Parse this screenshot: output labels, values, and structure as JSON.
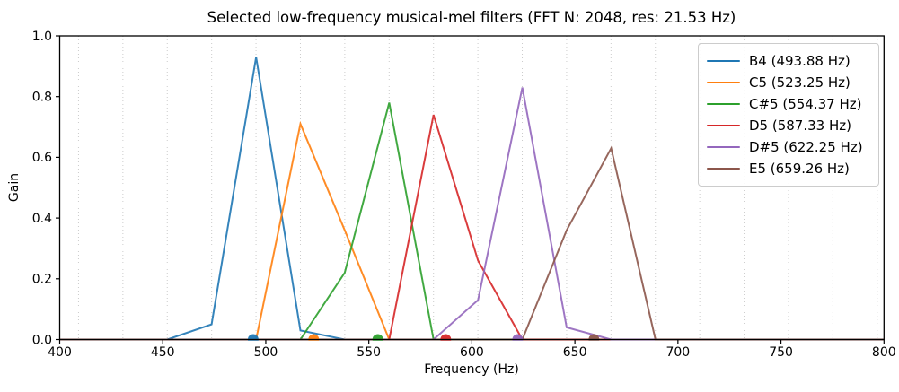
{
  "chart_data": {
    "type": "line",
    "title": "Selected low-frequency musical-mel filters (FFT N: 2048, res: 21.53 Hz)",
    "xlabel": "Frequency (Hz)",
    "ylabel": "Gain",
    "xlim": [
      400,
      800
    ],
    "ylim": [
      0.0,
      1.0
    ],
    "x_ticks": [
      400,
      450,
      500,
      550,
      600,
      650,
      700,
      750,
      800
    ],
    "y_ticks": [
      0.0,
      0.2,
      0.4,
      0.6,
      0.8,
      1.0
    ],
    "grid": {
      "axis": "x",
      "style": "dotted",
      "color": "#cccccc",
      "bin_hz": 21.533,
      "first_bin_index": 19,
      "last_bin_index": 37,
      "note": "vertical dotted gridlines at FFT bin frequencies (multiples of 21.53 Hz)"
    },
    "fft": {
      "n": 2048,
      "resolution_hz": 21.53
    },
    "legend_position": "upper-right",
    "series": [
      {
        "name": "B4",
        "label": "B4 (493.88 Hz)",
        "note_freq_hz": 493.88,
        "color": "#1f77b4",
        "points": [
          [
            400,
            0
          ],
          [
            452.2,
            0
          ],
          [
            473.7,
            0.05
          ],
          [
            495.3,
            0.93
          ],
          [
            516.8,
            0.03
          ],
          [
            538.3,
            0
          ],
          [
            800,
            0
          ]
        ]
      },
      {
        "name": "C5",
        "label": "C5 (523.25 Hz)",
        "note_freq_hz": 523.25,
        "color": "#ff7f0e",
        "points": [
          [
            400,
            0
          ],
          [
            495.3,
            0
          ],
          [
            516.8,
            0.71
          ],
          [
            538.3,
            0.36
          ],
          [
            559.9,
            0
          ],
          [
            800,
            0
          ]
        ]
      },
      {
        "name": "C#5",
        "label": "C#5 (554.37 Hz)",
        "note_freq_hz": 554.37,
        "color": "#2ca02c",
        "points": [
          [
            400,
            0
          ],
          [
            516.8,
            0
          ],
          [
            538.3,
            0.22
          ],
          [
            559.9,
            0.78
          ],
          [
            581.4,
            0
          ],
          [
            800,
            0
          ]
        ]
      },
      {
        "name": "D5",
        "label": "D5 (587.33 Hz)",
        "note_freq_hz": 587.33,
        "color": "#d62728",
        "points": [
          [
            400,
            0
          ],
          [
            559.9,
            0
          ],
          [
            581.4,
            0.74
          ],
          [
            603.0,
            0.26
          ],
          [
            624.5,
            0
          ],
          [
            800,
            0
          ]
        ]
      },
      {
        "name": "D#5",
        "label": "D#5 (622.25 Hz)",
        "note_freq_hz": 622.25,
        "color": "#9467bd",
        "points": [
          [
            400,
            0
          ],
          [
            581.4,
            0
          ],
          [
            603.0,
            0.13
          ],
          [
            624.5,
            0.83
          ],
          [
            646.0,
            0.04
          ],
          [
            667.6,
            0
          ],
          [
            800,
            0
          ]
        ]
      },
      {
        "name": "E5",
        "label": "E5 (659.26 Hz)",
        "note_freq_hz": 659.26,
        "color": "#8c564b",
        "points": [
          [
            400,
            0
          ],
          [
            624.5,
            0
          ],
          [
            646.0,
            0.36
          ],
          [
            667.6,
            0.63
          ],
          [
            689.1,
            0
          ],
          [
            800,
            0
          ]
        ]
      }
    ],
    "style": {
      "line_width": 2,
      "line_opacity": 0.9,
      "marker_radius": 6,
      "spine_color": "#000000",
      "tick_color": "#000000",
      "background": "#ffffff"
    }
  }
}
